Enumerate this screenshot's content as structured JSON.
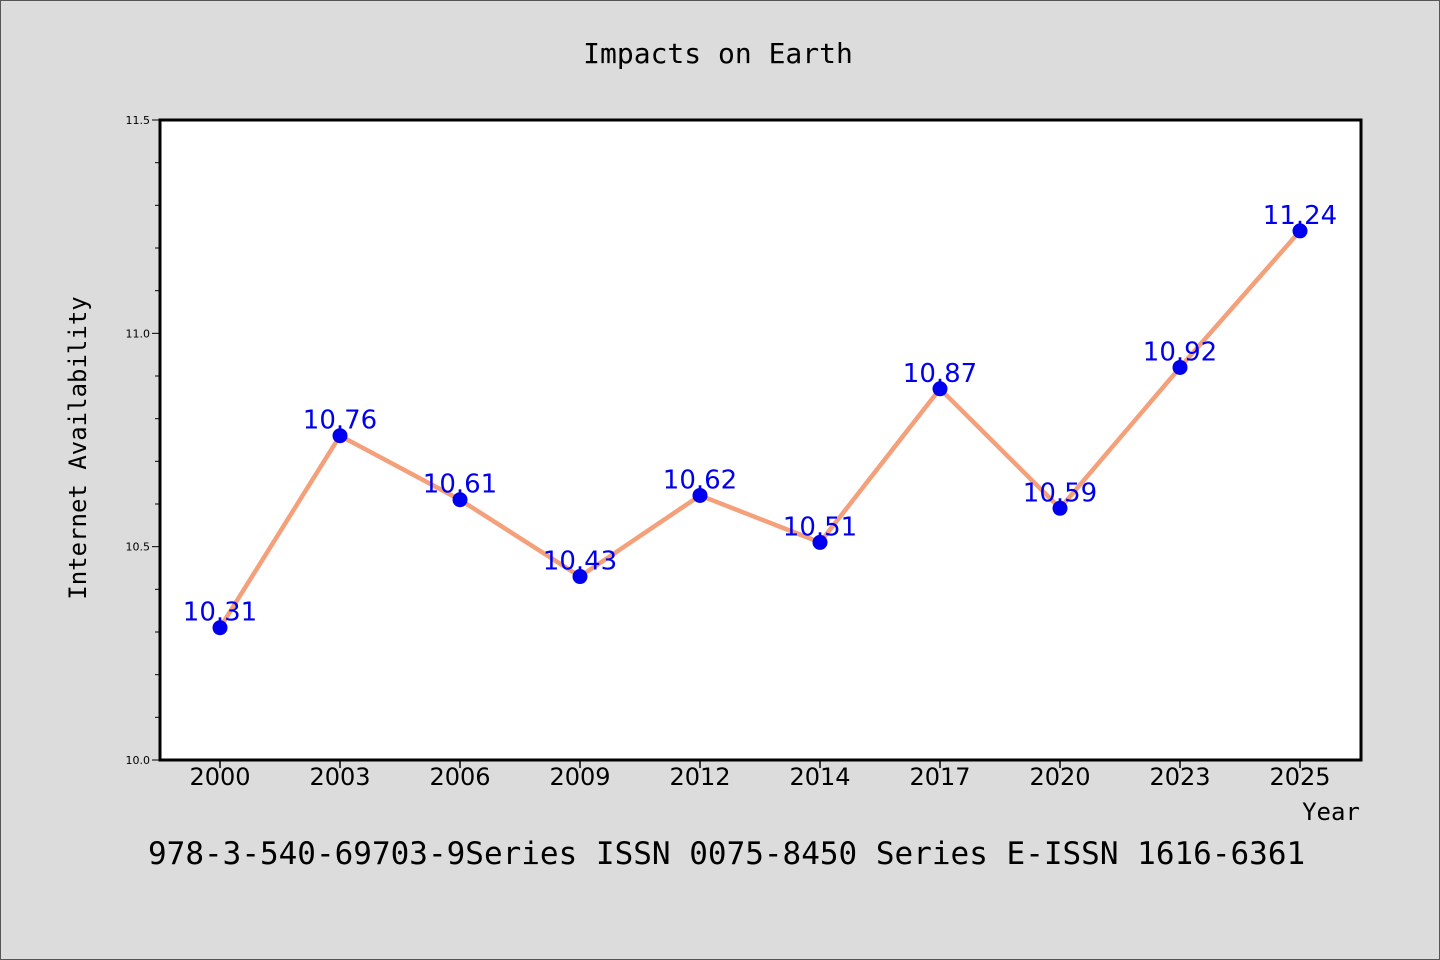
{
  "chart_data": {
    "type": "line",
    "title": "Impacts on Earth",
    "xlabel": "Year",
    "ylabel": "Internet Availability",
    "categories": [
      "2000",
      "2003",
      "2006",
      "2009",
      "2012",
      "2014",
      "2017",
      "2020",
      "2023",
      "2025"
    ],
    "series": [
      {
        "values": [
          10.31,
          10.76,
          10.61,
          10.43,
          10.62,
          10.51,
          10.87,
          10.59,
          10.92,
          11.24
        ]
      }
    ],
    "data_labels": [
      "10.31",
      "10.76",
      "10.61",
      "10.43",
      "10.62",
      "10.51",
      "10.87",
      "10.59",
      "10.92",
      "11.24"
    ],
    "ylim": [
      10.0,
      11.5
    ],
    "yticks": [
      10.0,
      10.5,
      11.0,
      11.5
    ],
    "ytick_labels": [
      "10.0",
      "10.5",
      "11.0",
      "11.5"
    ],
    "grid": false,
    "legend": "none",
    "footer": "978-3-540-69703-9Series ISSN 0075-8450 Series E-ISSN 1616-6361",
    "colors": {
      "background": "#dcdcdc",
      "plot_area": "#ffffff",
      "line": "#f4a07a",
      "marker": "#0000ee",
      "label": "#0000ee"
    }
  }
}
